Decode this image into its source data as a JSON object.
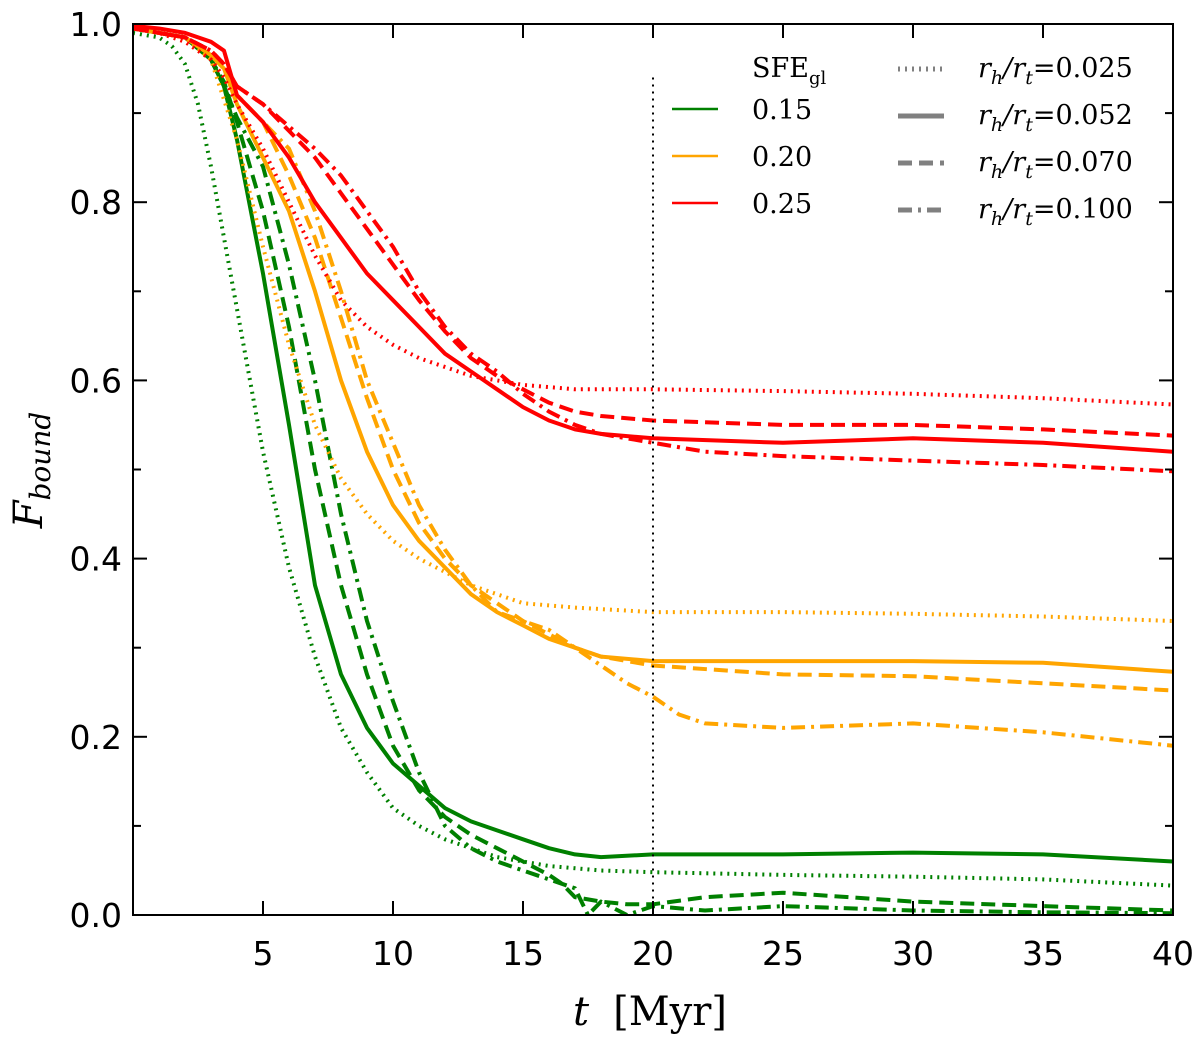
{
  "chart_data": {
    "type": "line",
    "title": "",
    "xlabel": "t",
    "xlabel_unit": "[Myr]",
    "ylabel": "F",
    "ylabel_sub": "bound",
    "xlim": [
      0,
      40
    ],
    "ylim": [
      0.0,
      1.0
    ],
    "xticks": [
      5,
      10,
      15,
      20,
      25,
      30,
      35,
      40
    ],
    "xtick_labels": [
      "5",
      "10",
      "15",
      "20",
      "25",
      "30",
      "35",
      "40"
    ],
    "yticks": [
      0.0,
      0.2,
      0.4,
      0.6,
      0.8,
      1.0
    ],
    "ytick_labels": [
      "0.0",
      "0.2",
      "0.4",
      "0.6",
      "0.8",
      "1.0"
    ],
    "grid": false,
    "vline": 20,
    "legend_sfe": {
      "title": "SFE",
      "title_sub": "gl",
      "entries": [
        {
          "label": "0.15",
          "color": "#008000"
        },
        {
          "label": "0.20",
          "color": "#FFA500"
        },
        {
          "label": "0.25",
          "color": "#FF0000"
        }
      ]
    },
    "legend_rh": {
      "entries": [
        {
          "label": "r",
          "sub1": "h",
          "mid": "/r",
          "sub2": "t",
          "value": "=0.025",
          "style": "dotted"
        },
        {
          "label": "r",
          "sub1": "h",
          "mid": "/r",
          "sub2": "t",
          "value": "=0.052",
          "style": "solid"
        },
        {
          "label": "r",
          "sub1": "h",
          "mid": "/r",
          "sub2": "t",
          "value": "=0.070",
          "style": "dashed"
        },
        {
          "label": "r",
          "sub1": "h",
          "mid": "/r",
          "sub2": "t",
          "value": "=0.100",
          "style": "dashdot"
        }
      ],
      "color": "#808080"
    },
    "series": [
      {
        "name": "SFE 0.15, rh/rt=0.025",
        "color": "#008000",
        "style": "dotted",
        "x": [
          0,
          1,
          1.5,
          2,
          2.5,
          3,
          4,
          5,
          6,
          7,
          8,
          9,
          10,
          11,
          12,
          13,
          14,
          16,
          18,
          20,
          25,
          30,
          35,
          40
        ],
        "y": [
          0.99,
          0.985,
          0.975,
          0.955,
          0.91,
          0.84,
          0.68,
          0.52,
          0.39,
          0.29,
          0.21,
          0.16,
          0.12,
          0.1,
          0.085,
          0.075,
          0.065,
          0.055,
          0.05,
          0.048,
          0.045,
          0.043,
          0.04,
          0.033
        ]
      },
      {
        "name": "SFE 0.15, rh/rt=0.052",
        "color": "#008000",
        "style": "solid",
        "x": [
          0,
          1,
          2,
          3,
          3.5,
          4,
          5,
          6,
          7,
          8,
          9,
          10,
          11,
          12,
          13,
          14,
          15,
          16,
          17,
          18,
          20,
          25,
          30,
          35,
          40
        ],
        "y": [
          0.995,
          0.99,
          0.985,
          0.96,
          0.93,
          0.87,
          0.72,
          0.55,
          0.37,
          0.27,
          0.21,
          0.17,
          0.145,
          0.12,
          0.105,
          0.095,
          0.085,
          0.075,
          0.068,
          0.065,
          0.068,
          0.068,
          0.07,
          0.068,
          0.06
        ]
      },
      {
        "name": "SFE 0.15, rh/rt=0.070",
        "color": "#008000",
        "style": "dashed",
        "x": [
          0,
          1,
          2,
          3,
          3.5,
          4,
          5,
          6,
          7,
          8,
          9,
          10,
          11,
          12,
          13,
          14,
          15,
          16,
          16.5,
          17,
          18,
          19,
          20,
          22,
          25,
          30,
          35,
          40
        ],
        "y": [
          0.995,
          0.99,
          0.985,
          0.96,
          0.935,
          0.89,
          0.79,
          0.66,
          0.5,
          0.37,
          0.27,
          0.19,
          0.14,
          0.11,
          0.09,
          0.075,
          0.06,
          0.045,
          0.035,
          0.02,
          0.015,
          0.012,
          0.012,
          0.02,
          0.025,
          0.015,
          0.01,
          0.005
        ]
      },
      {
        "name": "SFE 0.15, rh/rt=0.100",
        "color": "#008000",
        "style": "dashdot",
        "x": [
          0,
          1,
          2,
          3,
          3.5,
          4,
          5,
          6,
          7,
          8,
          9,
          10,
          11,
          12,
          13,
          14,
          15,
          16,
          17,
          17.5,
          18,
          19,
          20,
          22,
          25,
          30,
          35,
          40
        ],
        "y": [
          0.995,
          0.99,
          0.985,
          0.96,
          0.93,
          0.895,
          0.84,
          0.73,
          0.6,
          0.45,
          0.33,
          0.24,
          0.16,
          0.1,
          0.075,
          0.06,
          0.05,
          0.04,
          0.03,
          0.0,
          0.015,
          0.0,
          0.01,
          0.005,
          0.01,
          0.005,
          0.003,
          0.002
        ]
      },
      {
        "name": "SFE 0.20, rh/rt=0.025",
        "color": "#FFA500",
        "style": "dotted",
        "x": [
          0,
          1,
          2,
          3,
          4,
          5,
          6,
          7,
          8,
          9,
          10,
          11,
          12,
          13,
          14,
          15,
          17,
          20,
          25,
          30,
          35,
          40
        ],
        "y": [
          0.995,
          0.99,
          0.985,
          0.96,
          0.87,
          0.75,
          0.64,
          0.55,
          0.49,
          0.45,
          0.42,
          0.4,
          0.385,
          0.37,
          0.36,
          0.35,
          0.345,
          0.34,
          0.34,
          0.338,
          0.335,
          0.33
        ]
      },
      {
        "name": "SFE 0.20, rh/rt=0.052",
        "color": "#FFA500",
        "style": "solid",
        "x": [
          0,
          1,
          2,
          3,
          3.5,
          4,
          5,
          6,
          7,
          8,
          9,
          10,
          11,
          12,
          13,
          14,
          15,
          16,
          17,
          18,
          20,
          25,
          30,
          35,
          40
        ],
        "y": [
          0.995,
          0.99,
          0.985,
          0.965,
          0.95,
          0.91,
          0.85,
          0.79,
          0.7,
          0.6,
          0.52,
          0.46,
          0.42,
          0.39,
          0.36,
          0.34,
          0.325,
          0.31,
          0.3,
          0.29,
          0.285,
          0.285,
          0.285,
          0.283,
          0.273
        ]
      },
      {
        "name": "SFE 0.20, rh/rt=0.070",
        "color": "#FFA500",
        "style": "dashed",
        "x": [
          0,
          1,
          2,
          3,
          3.5,
          4,
          5,
          6,
          7,
          8,
          9,
          10,
          11,
          12,
          13,
          14,
          15,
          16,
          17,
          18,
          20,
          25,
          30,
          35,
          40
        ],
        "y": [
          0.995,
          0.99,
          0.985,
          0.965,
          0.95,
          0.92,
          0.89,
          0.83,
          0.76,
          0.67,
          0.58,
          0.5,
          0.44,
          0.4,
          0.37,
          0.35,
          0.33,
          0.315,
          0.3,
          0.29,
          0.28,
          0.27,
          0.268,
          0.26,
          0.252
        ]
      },
      {
        "name": "SFE 0.20, rh/rt=0.100",
        "color": "#FFA500",
        "style": "dashdot",
        "x": [
          0,
          1,
          2,
          3,
          3.5,
          4,
          5,
          6,
          7,
          8,
          9,
          10,
          11,
          12,
          13,
          14,
          15,
          16,
          17,
          18,
          19,
          20,
          21,
          22,
          25,
          30,
          35,
          40
        ],
        "y": [
          0.995,
          0.99,
          0.985,
          0.965,
          0.95,
          0.92,
          0.89,
          0.86,
          0.79,
          0.7,
          0.6,
          0.53,
          0.46,
          0.41,
          0.37,
          0.34,
          0.33,
          0.32,
          0.3,
          0.28,
          0.26,
          0.245,
          0.225,
          0.215,
          0.21,
          0.215,
          0.205,
          0.19
        ]
      },
      {
        "name": "SFE 0.25, rh/rt=0.025",
        "color": "#FF0000",
        "style": "dotted",
        "x": [
          0,
          1,
          2,
          3,
          3.5,
          4,
          5,
          6,
          7,
          8,
          9,
          10,
          11,
          12,
          13,
          14,
          15,
          17,
          20,
          25,
          30,
          35,
          40
        ],
        "y": [
          0.995,
          0.99,
          0.98,
          0.96,
          0.94,
          0.91,
          0.86,
          0.8,
          0.74,
          0.69,
          0.66,
          0.64,
          0.625,
          0.615,
          0.605,
          0.6,
          0.595,
          0.59,
          0.59,
          0.588,
          0.585,
          0.58,
          0.573
        ]
      },
      {
        "name": "SFE 0.25, rh/rt=0.052",
        "color": "#FF0000",
        "style": "solid",
        "x": [
          0,
          1,
          2,
          3,
          3.5,
          3.7,
          4,
          5,
          6,
          7,
          8,
          9,
          10,
          11,
          12,
          13,
          14,
          15,
          16,
          17,
          18,
          20,
          25,
          30,
          35,
          40
        ],
        "y": [
          0.998,
          0.995,
          0.99,
          0.98,
          0.97,
          0.95,
          0.92,
          0.89,
          0.85,
          0.8,
          0.76,
          0.72,
          0.69,
          0.66,
          0.63,
          0.61,
          0.59,
          0.57,
          0.555,
          0.545,
          0.54,
          0.535,
          0.53,
          0.535,
          0.53,
          0.52
        ]
      },
      {
        "name": "SFE 0.25, rh/rt=0.070",
        "color": "#FF0000",
        "style": "dashed",
        "x": [
          0,
          1,
          2,
          3,
          3.5,
          4,
          5,
          6,
          7,
          8,
          9,
          10,
          11,
          12,
          13,
          14,
          15,
          16,
          17,
          18,
          20,
          25,
          30,
          35,
          40
        ],
        "y": [
          0.995,
          0.99,
          0.985,
          0.97,
          0.955,
          0.93,
          0.91,
          0.88,
          0.85,
          0.81,
          0.77,
          0.73,
          0.69,
          0.655,
          0.625,
          0.605,
          0.59,
          0.575,
          0.565,
          0.56,
          0.555,
          0.55,
          0.55,
          0.545,
          0.538
        ]
      },
      {
        "name": "SFE 0.25, rh/rt=0.100",
        "color": "#FF0000",
        "style": "dashdot",
        "x": [
          0,
          1,
          2,
          3,
          3.5,
          4,
          5,
          6,
          7,
          8,
          9,
          10,
          11,
          12,
          13,
          14,
          15,
          16,
          17,
          18,
          20,
          22,
          25,
          30,
          35,
          40
        ],
        "y": [
          0.995,
          0.99,
          0.985,
          0.97,
          0.955,
          0.93,
          0.91,
          0.885,
          0.86,
          0.83,
          0.79,
          0.75,
          0.7,
          0.66,
          0.63,
          0.61,
          0.585,
          0.565,
          0.55,
          0.54,
          0.53,
          0.52,
          0.515,
          0.51,
          0.505,
          0.498
        ]
      }
    ]
  }
}
